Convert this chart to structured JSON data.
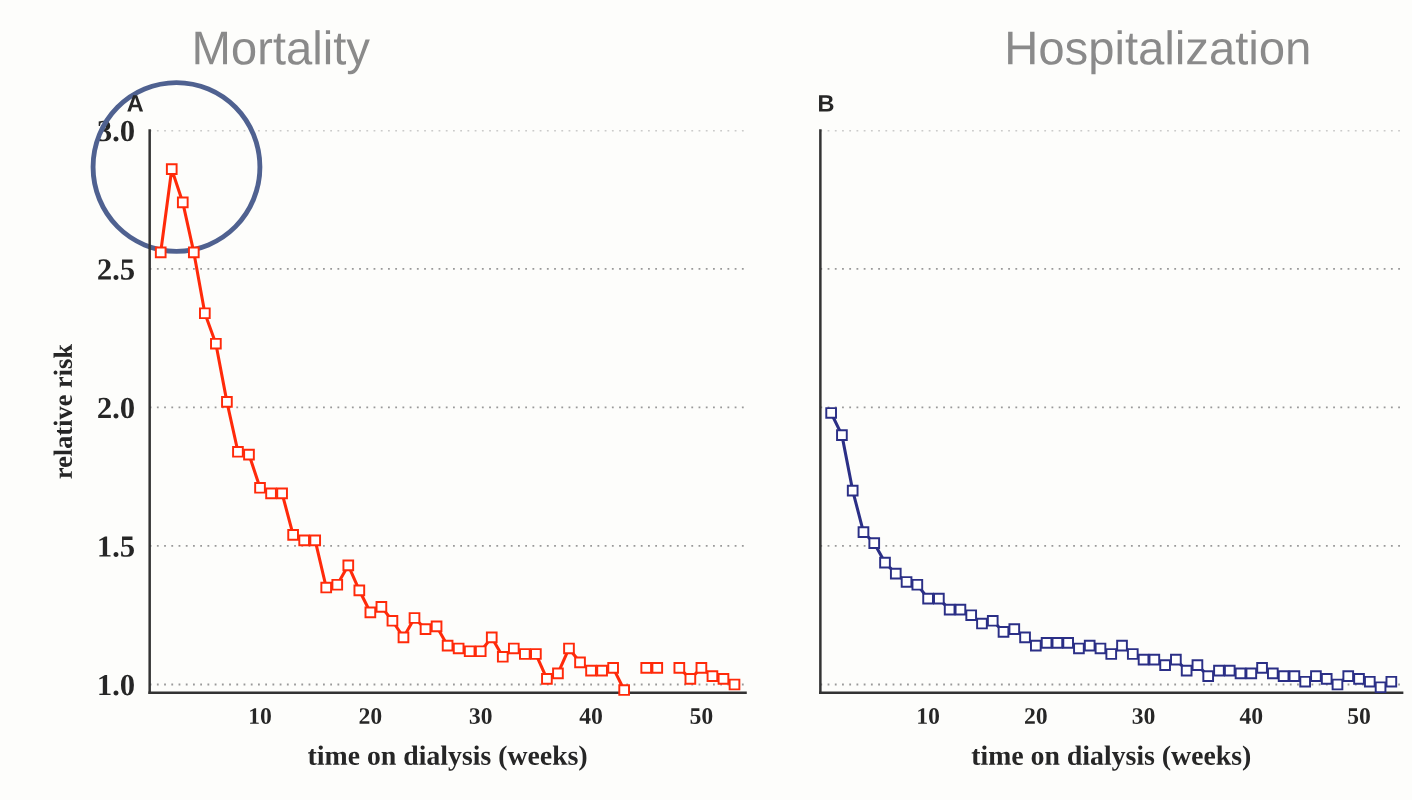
{
  "chart_data": [
    {
      "type": "line",
      "title": "Mortality",
      "annotations": [
        "A"
      ],
      "xlabel": "time on dialysis (weeks)",
      "ylabel": "relative risk",
      "x": [
        1,
        2,
        3,
        4,
        5,
        6,
        7,
        8,
        9,
        10,
        11,
        12,
        13,
        14,
        15,
        16,
        17,
        18,
        19,
        20,
        21,
        22,
        23,
        24,
        25,
        26,
        27,
        28,
        29,
        30,
        31,
        32,
        33,
        34,
        35,
        36,
        37,
        38,
        39,
        40,
        41,
        42,
        43,
        44,
        45,
        46,
        47,
        48,
        49,
        50,
        51,
        52,
        53
      ],
      "series": [
        {
          "color": "#ff2a0a",
          "values": [
            2.56,
            2.86,
            2.74,
            2.56,
            2.34,
            2.23,
            2.02,
            1.84,
            1.83,
            1.71,
            1.69,
            1.69,
            1.54,
            1.52,
            1.52,
            1.35,
            1.36,
            1.43,
            1.34,
            1.26,
            1.28,
            1.23,
            1.17,
            1.24,
            1.2,
            1.21,
            1.14,
            1.13,
            1.12,
            1.12,
            1.17,
            1.1,
            1.13,
            1.11,
            1.11,
            1.02,
            1.04,
            1.13,
            1.08,
            1.05,
            1.05,
            1.06,
            0.98,
            null,
            1.06,
            1.06,
            null,
            1.06,
            1.02,
            1.06,
            1.03,
            1.02,
            1.0
          ]
        }
      ],
      "xlim": [
        0,
        54
      ],
      "xticks": [
        10,
        20,
        30,
        40,
        50
      ],
      "ylim": [
        0.97,
        3.0
      ],
      "yticks": [
        {
          "value": 1,
          "label": "1.0"
        },
        1.5,
        {
          "value": 2,
          "label": "2.0"
        },
        2.5,
        {
          "value": 3,
          "label": "3.0"
        }
      ],
      "grid": "y",
      "marker": "square",
      "line_style": "solid"
    },
    {
      "type": "line",
      "title": "Hospitalization",
      "annotations": [
        "B"
      ],
      "xlabel": "time on dialysis (weeks)",
      "x": [
        1,
        2,
        3,
        4,
        5,
        6,
        7,
        8,
        9,
        10,
        11,
        12,
        13,
        14,
        15,
        16,
        17,
        18,
        19,
        20,
        21,
        22,
        23,
        24,
        25,
        26,
        27,
        28,
        29,
        30,
        31,
        32,
        33,
        34,
        35,
        36,
        37,
        38,
        39,
        40,
        41,
        42,
        43,
        44,
        45,
        46,
        47,
        48,
        49,
        50,
        51,
        52,
        53
      ],
      "series": [
        {
          "color": "#2b2f86",
          "values": [
            1.98,
            1.9,
            1.7,
            1.55,
            1.51,
            1.44,
            1.4,
            1.37,
            1.36,
            1.31,
            1.31,
            1.27,
            1.27,
            1.25,
            1.22,
            1.23,
            1.19,
            1.2,
            1.17,
            1.14,
            1.15,
            1.15,
            1.15,
            1.13,
            1.14,
            1.13,
            1.11,
            1.14,
            1.11,
            1.09,
            1.09,
            1.07,
            1.09,
            1.05,
            1.07,
            1.03,
            1.05,
            1.05,
            1.04,
            1.04,
            1.06,
            1.04,
            1.03,
            1.03,
            1.01,
            1.03,
            1.02,
            1.0,
            1.03,
            1.02,
            1.01,
            0.99,
            1.01
          ]
        }
      ],
      "xlim": [
        0,
        54
      ],
      "xticks": [
        10,
        20,
        30,
        40,
        50
      ],
      "ylim": [
        0.97,
        3.0
      ],
      "tick_labels": "x",
      "grid": "y",
      "marker": "square",
      "line_style": "solid",
      "yticks": [
        1,
        1.5,
        2,
        2.5,
        3
      ]
    }
  ]
}
